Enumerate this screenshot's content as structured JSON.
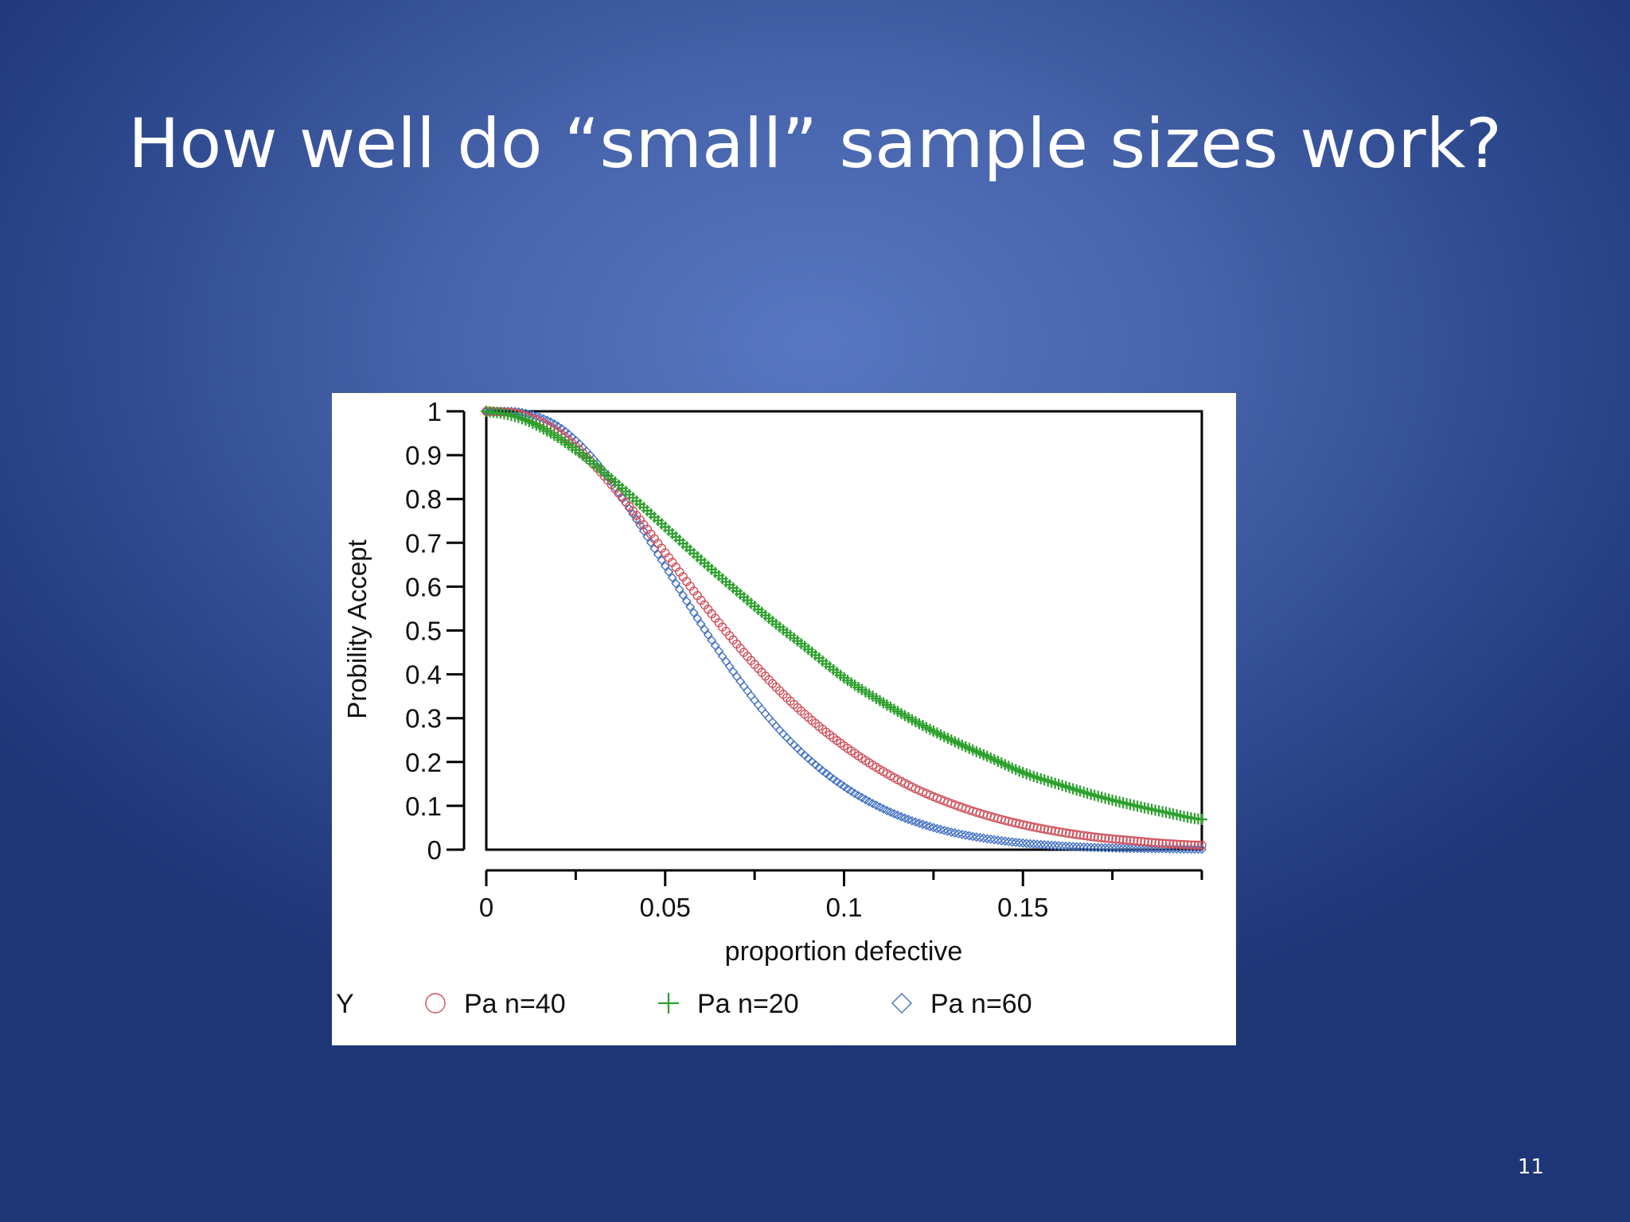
{
  "slide": {
    "title": "How well do “small” sample sizes work?",
    "page_number": "11"
  },
  "chart_data": {
    "type": "scatter",
    "title": "",
    "xlabel": "proportion defective",
    "ylabel": "Probility Accept",
    "xlim": [
      0,
      0.2
    ],
    "ylim": [
      0,
      1
    ],
    "x_ticks": [
      {
        "value": 0,
        "label": "0"
      },
      {
        "value": 0.05,
        "label": "0.05"
      },
      {
        "value": 0.1,
        "label": "0.1"
      },
      {
        "value": 0.15,
        "label": "0.15"
      }
    ],
    "x_minor_ticks": [
      0.025,
      0.075,
      0.125,
      0.175,
      0.2
    ],
    "y_ticks": [
      {
        "value": 0,
        "label": "0"
      },
      {
        "value": 0.1,
        "label": "0.1"
      },
      {
        "value": 0.2,
        "label": "0.2"
      },
      {
        "value": 0.3,
        "label": "0.3"
      },
      {
        "value": 0.4,
        "label": "0.4"
      },
      {
        "value": 0.5,
        "label": "0.5"
      },
      {
        "value": 0.6,
        "label": "0.6"
      },
      {
        "value": 0.7,
        "label": "0.7"
      },
      {
        "value": 0.8,
        "label": "0.8"
      },
      {
        "value": 0.9,
        "label": "0.9"
      },
      {
        "value": 1,
        "label": "1"
      }
    ],
    "grid": false,
    "legend": {
      "position": "bottom",
      "title": "Y"
    },
    "series": [
      {
        "name": "Pa n=40",
        "marker": "circle",
        "color": "#d0505a",
        "x": [
          0,
          0.01,
          0.02,
          0.03,
          0.04,
          0.05,
          0.06,
          0.07,
          0.08,
          0.09,
          0.1,
          0.11,
          0.12,
          0.13,
          0.14,
          0.15,
          0.16,
          0.17,
          0.18,
          0.19,
          0.2
        ],
        "y": [
          1.0,
          0.992,
          0.953,
          0.879,
          0.783,
          0.677,
          0.569,
          0.469,
          0.379,
          0.302,
          0.237,
          0.183,
          0.139,
          0.105,
          0.078,
          0.057,
          0.041,
          0.029,
          0.021,
          0.014,
          0.01
        ]
      },
      {
        "name": "Pa n=20",
        "marker": "plus",
        "color": "#2ca02c",
        "x": [
          0,
          0.01,
          0.02,
          0.03,
          0.04,
          0.05,
          0.06,
          0.07,
          0.08,
          0.09,
          0.1,
          0.11,
          0.12,
          0.13,
          0.14,
          0.15,
          0.16,
          0.17,
          0.18,
          0.19,
          0.2
        ],
        "y": [
          1.0,
          0.983,
          0.94,
          0.88,
          0.81,
          0.736,
          0.661,
          0.59,
          0.521,
          0.457,
          0.392,
          0.34,
          0.292,
          0.25,
          0.213,
          0.176,
          0.149,
          0.124,
          0.103,
          0.085,
          0.069
        ]
      },
      {
        "name": "Pa n=60",
        "marker": "diamond",
        "color": "#4472c4",
        "x": [
          0,
          0.01,
          0.02,
          0.03,
          0.04,
          0.05,
          0.06,
          0.07,
          0.08,
          0.09,
          0.1,
          0.11,
          0.12,
          0.13,
          0.14,
          0.15,
          0.16,
          0.17,
          0.18,
          0.19,
          0.2
        ],
        "y": [
          1.0,
          0.997,
          0.966,
          0.891,
          0.778,
          0.647,
          0.515,
          0.395,
          0.291,
          0.208,
          0.144,
          0.097,
          0.063,
          0.04,
          0.025,
          0.015,
          0.009,
          0.005,
          0.003,
          0.002,
          0.001
        ]
      }
    ]
  }
}
